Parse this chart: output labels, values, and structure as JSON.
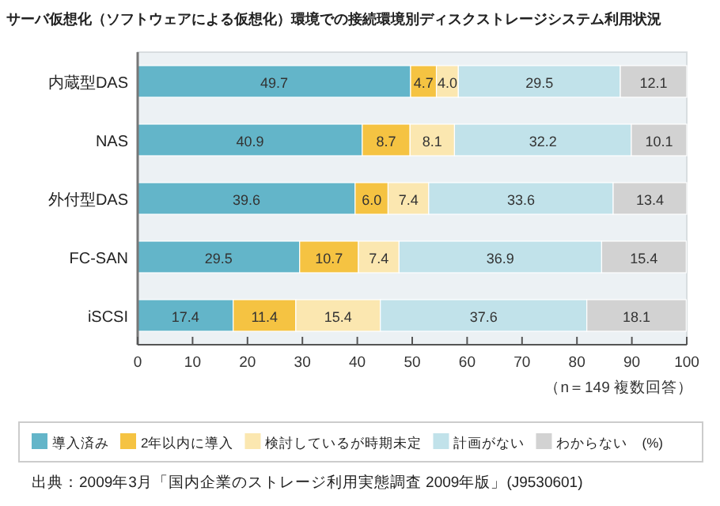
{
  "chart_data": {
    "type": "bar",
    "orientation": "horizontal",
    "stacked": true,
    "title": "サーバ仮想化（ソフトウェアによる仮想化）環境での接続環境別ディスクストレージシステム利用状況",
    "categories": [
      "内蔵型DAS",
      "NAS",
      "外付型DAS",
      "FC-SAN",
      "iSCSI"
    ],
    "series": [
      {
        "name": "導入済み",
        "color": "#63b5c9",
        "values": [
          49.7,
          40.9,
          39.6,
          29.5,
          17.4
        ],
        "value_labels": [
          "49.7",
          "40.9",
          "39.6",
          "29.5",
          "17.4"
        ]
      },
      {
        "name": "2年以内に導入",
        "color": "#f5c342",
        "values": [
          4.7,
          8.7,
          6.0,
          10.7,
          11.4
        ],
        "value_labels": [
          "4.7",
          "8.7",
          "6.0",
          "10.7",
          "11.4"
        ]
      },
      {
        "name": "検討しているが時期未定",
        "color": "#fbe7b0",
        "values": [
          4.0,
          8.1,
          7.4,
          7.4,
          15.4
        ],
        "value_labels": [
          "4.0",
          "8.1",
          "7.4",
          "7.4",
          "15.4"
        ]
      },
      {
        "name": "計画がない",
        "color": "#c1e2ea",
        "values": [
          29.5,
          32.2,
          33.6,
          36.9,
          37.6
        ],
        "value_labels": [
          "29.5",
          "32.2",
          "33.6",
          "36.9",
          "37.6"
        ]
      },
      {
        "name": "わからない",
        "color": "#d2d2d2",
        "values": [
          12.1,
          10.1,
          13.4,
          15.4,
          18.1
        ],
        "value_labels": [
          "12.1",
          "10.1",
          "13.4",
          "15.4",
          "18.1"
        ]
      }
    ],
    "xlim": [
      0,
      100
    ],
    "xticks": [
      0,
      10,
      20,
      30,
      40,
      50,
      60,
      70,
      80,
      90,
      100
    ],
    "legend": "bottom",
    "annotations": [
      "（n＝149 複数回答）",
      "(%)",
      "出典：2009年3月「国内企業のストレージ利用実態調査 2009年版」(J9530601)"
    ]
  }
}
